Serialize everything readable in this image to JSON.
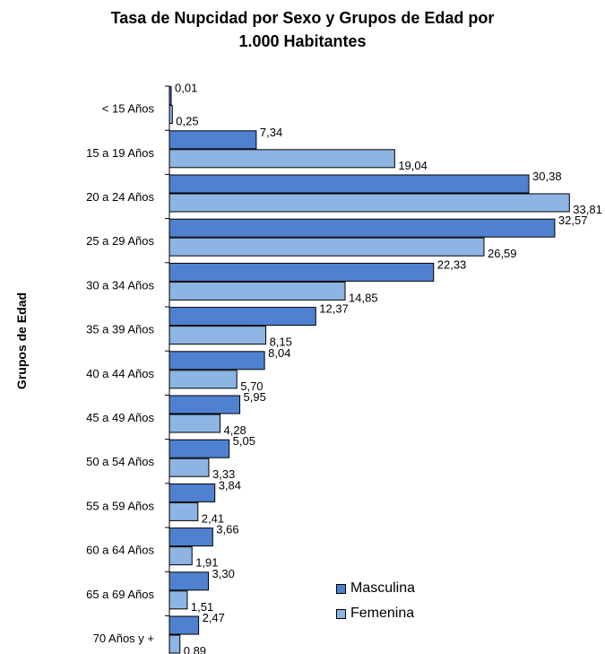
{
  "chart_data": {
    "type": "bar",
    "orientation": "horizontal",
    "title_line1": "Tasa de Nupcidad por Sexo y Grupos de Edad por",
    "title_line2": "1.000 Habitantes",
    "xlabel": "",
    "ylabel": "Grupos de Edad",
    "categories": [
      "<  15 Años",
      "15 a  19 Años",
      "20 a  24 Años",
      "25 a 29 Años",
      "30 a 34 Años",
      "35 a 39 Años",
      "40 a 44 Años",
      "45 a 49 Años",
      "50 a 54 Años",
      "55 a 59 Años",
      "60 a 64 Años",
      "65 a 69 Años",
      "70  Años y  +"
    ],
    "series": [
      {
        "name": "Masculina",
        "color": "#4f81d0",
        "values": [
          0.01,
          7.34,
          30.38,
          32.57,
          22.33,
          12.37,
          8.04,
          5.95,
          5.05,
          3.84,
          3.66,
          3.3,
          2.47
        ],
        "labels": [
          "0,01",
          "7,34",
          "30,38",
          "32,57",
          "22,33",
          "12,37",
          "8,04",
          "5,95",
          "5,05",
          "3,84",
          "3,66",
          "3,30",
          "2,47"
        ]
      },
      {
        "name": "Femenina",
        "color": "#8db4e3",
        "values": [
          0.25,
          19.04,
          33.81,
          26.59,
          14.85,
          8.15,
          5.7,
          4.28,
          3.33,
          2.41,
          1.91,
          1.51,
          0.89
        ],
        "labels": [
          "0,25",
          "19,04",
          "33,81",
          "26,59",
          "14,85",
          "8,15",
          "5,70",
          "4,28",
          "3,33",
          "2,41",
          "1,91",
          "1,51",
          "0,89"
        ]
      }
    ],
    "xlim": [
      0,
      35
    ],
    "grid": false,
    "legend_position": "bottom-right"
  }
}
